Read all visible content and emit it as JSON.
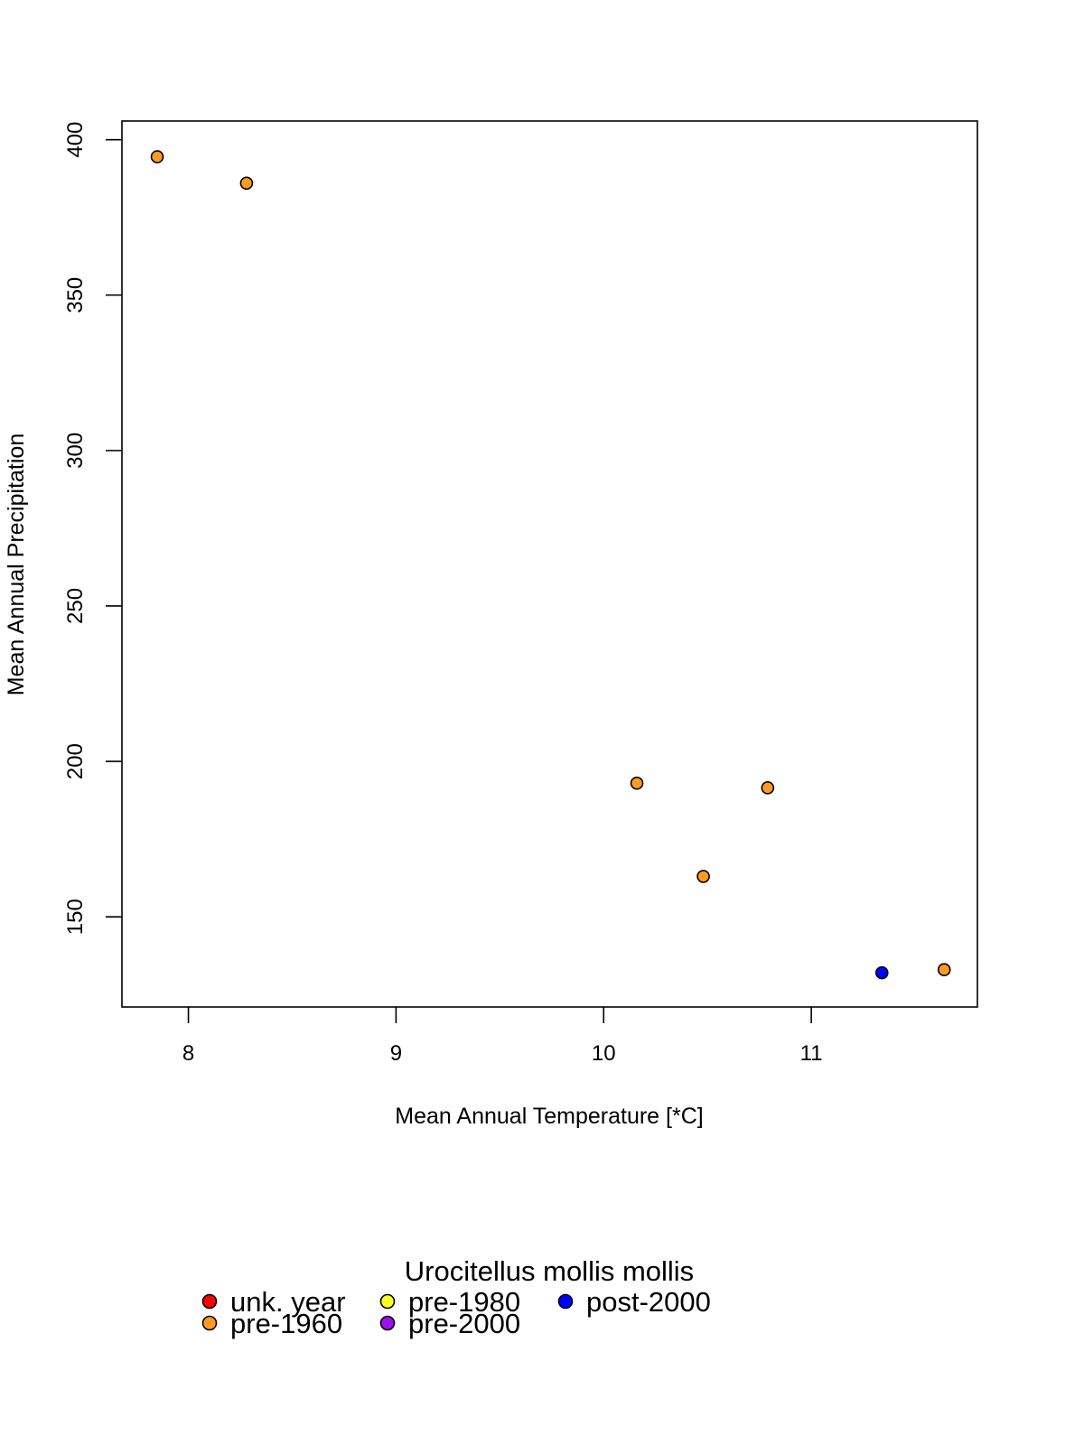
{
  "chart_data": {
    "type": "scatter",
    "title": "",
    "xlabel": "Mean Annual Temperature [*C]",
    "ylabel": "Mean Annual Precipitation",
    "xlim": [
      7.68,
      11.8
    ],
    "ylim": [
      121,
      406
    ],
    "x_ticks": [
      8,
      9,
      10,
      11
    ],
    "y_ticks": [
      150,
      200,
      250,
      300,
      350,
      400
    ],
    "grid": false,
    "legend": {
      "title": "Urocitellus mollis mollis",
      "placement": "bottom",
      "entries": [
        {
          "label": "unk. year",
          "color": "#ff0000"
        },
        {
          "label": "pre-1960",
          "color": "#ff9a22"
        },
        {
          "label": "pre-1980",
          "color": "#ffff22"
        },
        {
          "label": "pre-2000",
          "color": "#9a10ee"
        },
        {
          "label": "post-2000",
          "color": "#0000ff"
        }
      ]
    },
    "series": [
      {
        "name": "pre-1960",
        "color": "#ff9a22",
        "points": [
          {
            "x": 7.85,
            "y": 394.5
          },
          {
            "x": 8.28,
            "y": 386
          },
          {
            "x": 10.16,
            "y": 193
          },
          {
            "x": 10.79,
            "y": 191.5
          },
          {
            "x": 10.48,
            "y": 163
          },
          {
            "x": 11.64,
            "y": 133
          }
        ]
      },
      {
        "name": "post-2000",
        "color": "#0000ff",
        "points": [
          {
            "x": 11.34,
            "y": 132
          }
        ]
      }
    ]
  }
}
